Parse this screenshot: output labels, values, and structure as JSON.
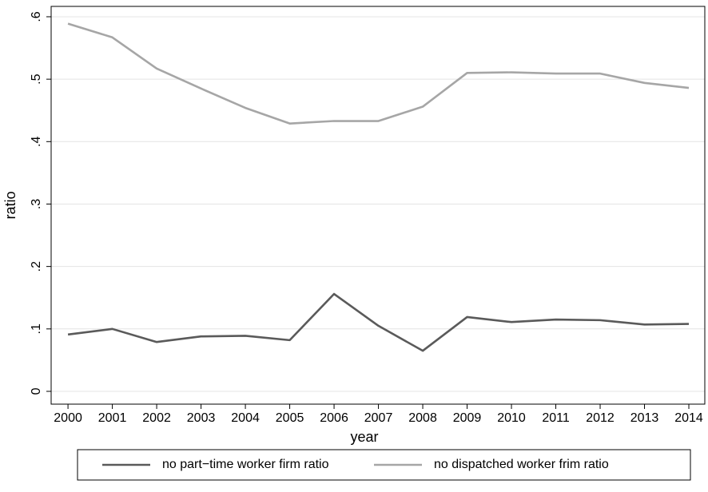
{
  "chart_data": {
    "type": "line",
    "x": [
      2000,
      2001,
      2002,
      2003,
      2004,
      2005,
      2006,
      2007,
      2008,
      2009,
      2010,
      2011,
      2012,
      2013,
      2014
    ],
    "series": [
      {
        "name": "no part−time worker firm ratio",
        "color": "#5a5a5a",
        "values": [
          0.091,
          0.1,
          0.079,
          0.088,
          0.089,
          0.082,
          0.156,
          0.105,
          0.065,
          0.119,
          0.111,
          0.115,
          0.114,
          0.107,
          0.108
        ]
      },
      {
        "name": "no dispatched worker frim ratio",
        "color": "#a6a6a6",
        "values": [
          0.589,
          0.567,
          0.517,
          0.485,
          0.454,
          0.429,
          0.433,
          0.433,
          0.456,
          0.51,
          0.511,
          0.509,
          0.509,
          0.494,
          0.486
        ]
      }
    ],
    "xlabel": "year",
    "ylabel": "ratio",
    "xlim": [
      1999.62,
      2014.36
    ],
    "ylim": [
      -0.0205,
      0.6166
    ],
    "xticks": [
      2000,
      2001,
      2002,
      2003,
      2004,
      2005,
      2006,
      2007,
      2008,
      2009,
      2010,
      2011,
      2012,
      2013,
      2014
    ],
    "yticks": [
      0,
      {
        "value": 0.1,
        "label": ".1"
      },
      {
        "value": 0.2,
        "label": ".2"
      },
      {
        "value": 0.3,
        "label": ".3"
      },
      {
        "value": 0.4,
        "label": ".4"
      },
      {
        "value": 0.5,
        "label": ".5"
      },
      {
        "value": 0.6,
        "label": ".6"
      }
    ],
    "grid": true,
    "legend": "bottom"
  }
}
